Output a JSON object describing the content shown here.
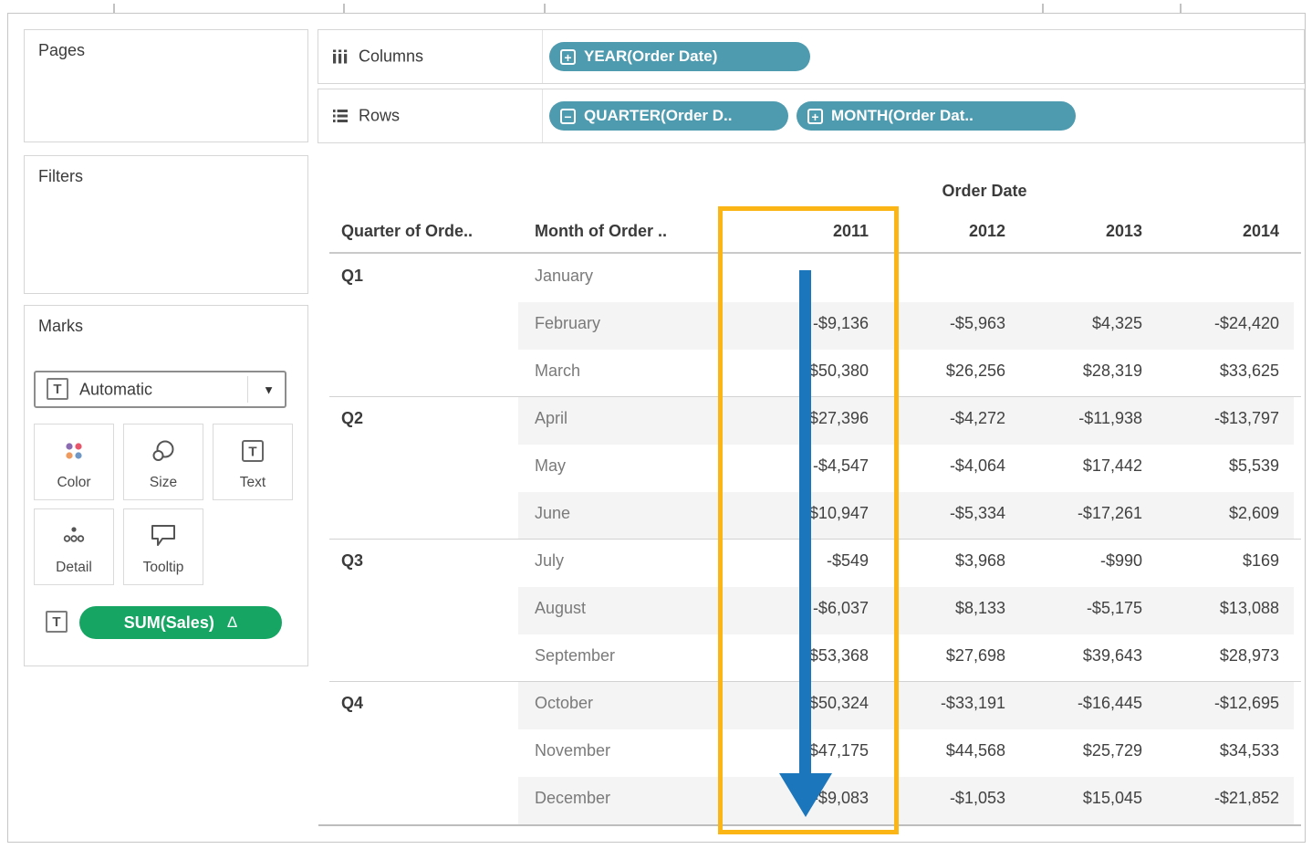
{
  "shelves": {
    "columns": {
      "icon": "columns-shelf-icon",
      "label": "Columns",
      "pills": [
        {
          "icon": "expand-plus-icon",
          "text": "YEAR(Order Date)"
        }
      ]
    },
    "rows": {
      "icon": "rows-shelf-icon",
      "label": "Rows",
      "pills": [
        {
          "icon": "collapse-minus-icon",
          "text": "QUARTER(Order D.."
        },
        {
          "icon": "expand-plus-icon",
          "text": "MONTH(Order Dat.."
        }
      ]
    }
  },
  "cards": {
    "pages": {
      "title": "Pages"
    },
    "filters": {
      "title": "Filters"
    },
    "marks": {
      "title": "Marks",
      "type_dropdown": {
        "icon": "text-mark-icon",
        "value": "Automatic",
        "caret_icon": "caret-down-icon"
      },
      "buttons": [
        {
          "icon": "color-icon",
          "label": "Color"
        },
        {
          "icon": "size-icon",
          "label": "Size"
        },
        {
          "icon": "text-icon",
          "label": "Text"
        },
        {
          "icon": "detail-icon",
          "label": "Detail"
        },
        {
          "icon": "tooltip-icon",
          "label": "Tooltip"
        }
      ],
      "encoding": {
        "icon": "text-mark-icon",
        "pill_text": "SUM(Sales)",
        "badge": "Δ"
      }
    }
  },
  "table": {
    "column_group_label": "Order Date",
    "row_header_labels": [
      "Quarter of Orde..",
      "Month of Order .."
    ],
    "year_headers": [
      "2011",
      "2012",
      "2013",
      "2014"
    ],
    "quarters": [
      {
        "label": "Q1",
        "rows": [
          {
            "month": "January",
            "values": [
              "",
              "",
              "",
              ""
            ]
          },
          {
            "month": "February",
            "values": [
              "-$9,136",
              "-$5,963",
              "$4,325",
              "-$24,420"
            ]
          },
          {
            "month": "March",
            "values": [
              "$50,380",
              "$26,256",
              "$28,319",
              "$33,625"
            ]
          }
        ]
      },
      {
        "label": "Q2",
        "rows": [
          {
            "month": "April",
            "values": [
              "-$27,396",
              "-$4,272",
              "-$11,938",
              "-$13,797"
            ]
          },
          {
            "month": "May",
            "values": [
              "-$4,547",
              "-$4,064",
              "$17,442",
              "$5,539"
            ]
          },
          {
            "month": "June",
            "values": [
              "$10,947",
              "-$5,334",
              "-$17,261",
              "$2,609"
            ]
          }
        ]
      },
      {
        "label": "Q3",
        "rows": [
          {
            "month": "July",
            "values": [
              "-$549",
              "$3,968",
              "-$990",
              "$169"
            ]
          },
          {
            "month": "August",
            "values": [
              "-$6,037",
              "$8,133",
              "-$5,175",
              "$13,088"
            ]
          },
          {
            "month": "September",
            "values": [
              "$53,368",
              "$27,698",
              "$39,643",
              "$28,973"
            ]
          }
        ]
      },
      {
        "label": "Q4",
        "rows": [
          {
            "month": "October",
            "values": [
              "-$50,324",
              "-$33,191",
              "-$16,445",
              "-$12,695"
            ]
          },
          {
            "month": "November",
            "values": [
              "$47,175",
              "$44,568",
              "$25,729",
              "$34,533"
            ]
          },
          {
            "month": "December",
            "values": [
              "-$9,083",
              "-$1,053",
              "$15,045",
              "-$21,852"
            ]
          }
        ]
      }
    ]
  },
  "annotation": {
    "highlighted_year": "2011",
    "arrow_direction": "down"
  },
  "colors": {
    "pill_teal": "#4E9BB0",
    "pill_green": "#17A564",
    "highlight_yellow": "#FBB515",
    "arrow_blue": "#1C76BC",
    "row_band": "#F4F4F4"
  }
}
